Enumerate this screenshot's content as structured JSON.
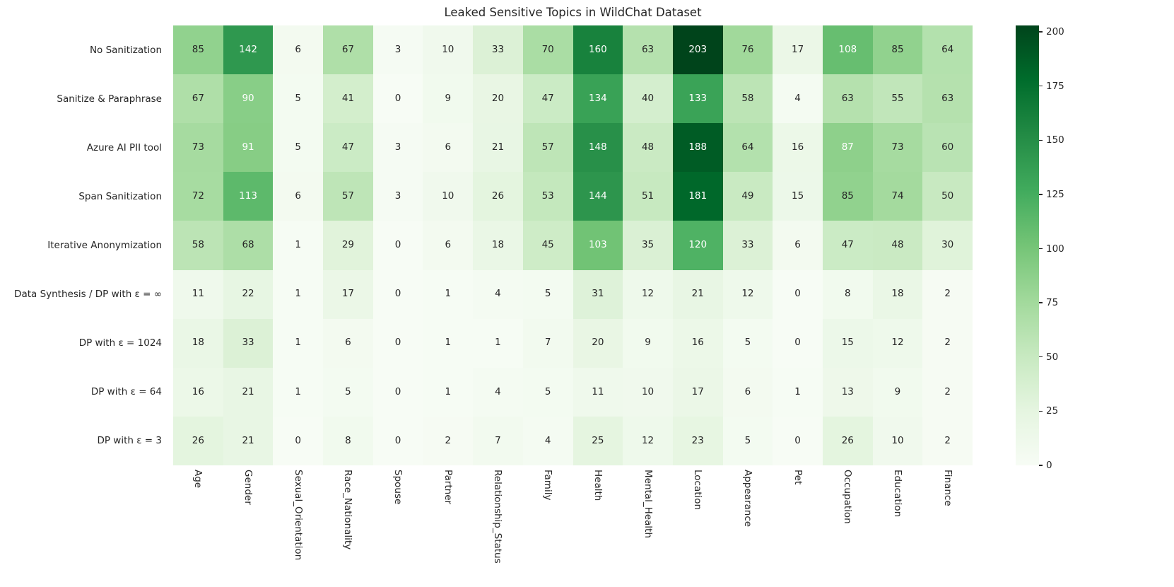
{
  "chart_data": {
    "type": "heatmap",
    "title": "Leaked Sensitive Topics in WildChat Dataset",
    "rows": [
      "No Sanitization",
      "Sanitize & Paraphrase",
      "Azure AI PII tool",
      "Span Sanitization",
      "Iterative Anonymization",
      "Data Synthesis / DP with ε = ∞",
      "DP with ε = 1024",
      "DP with ε = 64",
      "DP with ε = 3"
    ],
    "columns": [
      "Age",
      "Gender",
      "Sexual_Orientation",
      "Race_Nationality",
      "Spouse",
      "Partner",
      "Relationship_Status",
      "Family",
      "Health",
      "Mental_Health",
      "Location",
      "Appearance",
      "Pet",
      "Occupation",
      "Education",
      "Finance"
    ],
    "values": [
      [
        85,
        142,
        6,
        67,
        3,
        10,
        33,
        70,
        160,
        63,
        203,
        76,
        17,
        108,
        85,
        64
      ],
      [
        67,
        90,
        5,
        41,
        0,
        9,
        20,
        47,
        134,
        40,
        133,
        58,
        4,
        63,
        55,
        63
      ],
      [
        73,
        91,
        5,
        47,
        3,
        6,
        21,
        57,
        148,
        48,
        188,
        64,
        16,
        87,
        73,
        60
      ],
      [
        72,
        113,
        6,
        57,
        3,
        10,
        26,
        53,
        144,
        51,
        181,
        49,
        15,
        85,
        74,
        50
      ],
      [
        58,
        68,
        1,
        29,
        0,
        6,
        18,
        45,
        103,
        35,
        120,
        33,
        6,
        47,
        48,
        30
      ],
      [
        11,
        22,
        1,
        17,
        0,
        1,
        4,
        5,
        31,
        12,
        21,
        12,
        0,
        8,
        18,
        2
      ],
      [
        18,
        33,
        1,
        6,
        0,
        1,
        1,
        7,
        20,
        9,
        16,
        5,
        0,
        15,
        12,
        2
      ],
      [
        16,
        21,
        1,
        5,
        0,
        1,
        4,
        5,
        11,
        10,
        17,
        6,
        1,
        13,
        9,
        2
      ],
      [
        26,
        21,
        0,
        8,
        0,
        2,
        7,
        4,
        25,
        12,
        23,
        5,
        0,
        26,
        10,
        2
      ]
    ],
    "vmin": 0,
    "vmax": 203,
    "colormap": {
      "name": "Greens",
      "stops": [
        "#f7fcf5",
        "#e5f5e0",
        "#c7e9c0",
        "#a1d99b",
        "#74c476",
        "#41ab5d",
        "#238b45",
        "#006d2c",
        "#00441b"
      ]
    },
    "colorbar": {
      "ticks": [
        0,
        25,
        50,
        75,
        100,
        125,
        150,
        175,
        200
      ],
      "position": "right"
    },
    "annotation_colors": {
      "dark": "#262626",
      "light": "#ffffff"
    },
    "grid": false
  }
}
